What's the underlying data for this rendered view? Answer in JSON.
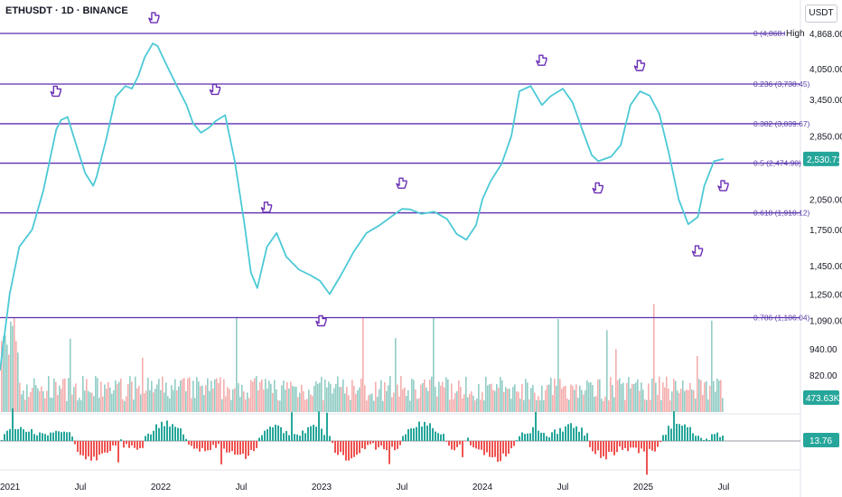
{
  "header": {
    "title": "ETHUSDT · 1D · BINANCE",
    "currency": "USDT"
  },
  "colors": {
    "price_line": "#4cc9d6",
    "fib_line": "#5b2fb0",
    "fib_label": "#5b3fa8",
    "volume_up": "#7fc4bb",
    "volume_down": "#f3a0a0",
    "hist_up": "#26a69a",
    "hist_down": "#ef5350",
    "badge_bg": "#26a69a",
    "marker": "#6a2fb5"
  },
  "chart_data": {
    "type": "line",
    "title": "ETHUSDT · 1D · BINANCE",
    "y_scale": "log",
    "y_ticks": [
      {
        "value": 4868,
        "label": "4,868.00"
      },
      {
        "value": 4050,
        "label": "4,050.00"
      },
      {
        "value": 3450,
        "label": "3,450.00"
      },
      {
        "value": 2850,
        "label": "2,850.00"
      },
      {
        "value": 2050,
        "label": "2,050.00"
      },
      {
        "value": 1750,
        "label": "1,750.00"
      },
      {
        "value": 1450,
        "label": "1,450.00"
      },
      {
        "value": 1250,
        "label": "1,250.00"
      },
      {
        "value": 1090,
        "label": "1,090.00"
      },
      {
        "value": 940,
        "label": "940.00"
      },
      {
        "value": 820,
        "label": "820.00"
      }
    ],
    "x_ticks": [
      {
        "value": 2021.0,
        "label": "2021"
      },
      {
        "value": 2021.5,
        "label": "Jul"
      },
      {
        "value": 2022.0,
        "label": "2022"
      },
      {
        "value": 2022.5,
        "label": "Jul"
      },
      {
        "value": 2023.0,
        "label": "2023"
      },
      {
        "value": 2023.5,
        "label": "Jul"
      },
      {
        "value": 2024.0,
        "label": "2024"
      },
      {
        "value": 2024.5,
        "label": "Jul"
      },
      {
        "value": 2025.0,
        "label": "2025"
      },
      {
        "value": 2025.5,
        "label": "Jul"
      }
    ],
    "fib_levels": [
      {
        "price": 4868,
        "label": "0 (4,868.00)",
        "high_label": "High"
      },
      {
        "price": 3738.45,
        "label": "0.236 (3,738.45)"
      },
      {
        "price": 3039.67,
        "label": "0.382 (3,039.67)"
      },
      {
        "price": 2474.9,
        "label": "0.5 (2,474.90)"
      },
      {
        "price": 1910.12,
        "label": "0.618 (1,910.12)"
      },
      {
        "price": 1106.04,
        "label": "0.786 (1,106.04)"
      }
    ],
    "last_price": {
      "value": 2530.71,
      "label": "2,530.71"
    },
    "volume_label": "473.63K",
    "indicator_label": "13.76",
    "series": [
      {
        "x": [
          2021.0,
          2021.06,
          2021.12,
          2021.2,
          2021.27,
          2021.35,
          2021.38,
          2021.42,
          2021.47,
          2021.53,
          2021.58,
          2021.6,
          2021.66,
          2021.72,
          2021.78,
          2021.82,
          2021.86,
          2021.9,
          2021.95,
          2021.98,
          2022.04,
          2022.1,
          2022.16,
          2022.2,
          2022.25,
          2022.3,
          2022.34,
          2022.4,
          2022.46,
          2022.52,
          2022.56,
          2022.6,
          2022.66,
          2022.72,
          2022.78,
          2022.86,
          2022.93,
          2022.99,
          2023.05,
          2023.12,
          2023.2,
          2023.28,
          2023.36,
          2023.44,
          2023.5,
          2023.55,
          2023.62,
          2023.7,
          2023.78,
          2023.84,
          2023.9,
          2023.96,
          2024.0,
          2024.05,
          2024.12,
          2024.18,
          2024.23,
          2024.3,
          2024.37,
          2024.42,
          2024.5,
          2024.56,
          2024.62,
          2024.68,
          2024.72,
          2024.8,
          2024.86,
          2024.92,
          2024.98,
          2025.04,
          2025.1,
          2025.16,
          2025.22,
          2025.28,
          2025.34,
          2025.38,
          2025.44,
          2025.5
        ],
        "values": [
          840,
          1250,
          1600,
          1750,
          2150,
          2950,
          3100,
          3150,
          2750,
          2350,
          2200,
          2300,
          2800,
          3500,
          3700,
          3650,
          3900,
          4300,
          4620,
          4560,
          4100,
          3700,
          3350,
          3050,
          2900,
          2980,
          3080,
          3180,
          2500,
          1800,
          1400,
          1290,
          1600,
          1720,
          1520,
          1420,
          1380,
          1340,
          1250,
          1380,
          1560,
          1720,
          1790,
          1880,
          1950,
          1945,
          1900,
          1920,
          1850,
          1710,
          1660,
          1790,
          2050,
          2250,
          2470,
          2850,
          3600,
          3700,
          3350,
          3500,
          3650,
          3400,
          2950,
          2580,
          2500,
          2560,
          2720,
          3350,
          3600,
          3520,
          3200,
          2600,
          2050,
          1800,
          1870,
          2200,
          2500,
          2530
        ]
      }
    ]
  }
}
